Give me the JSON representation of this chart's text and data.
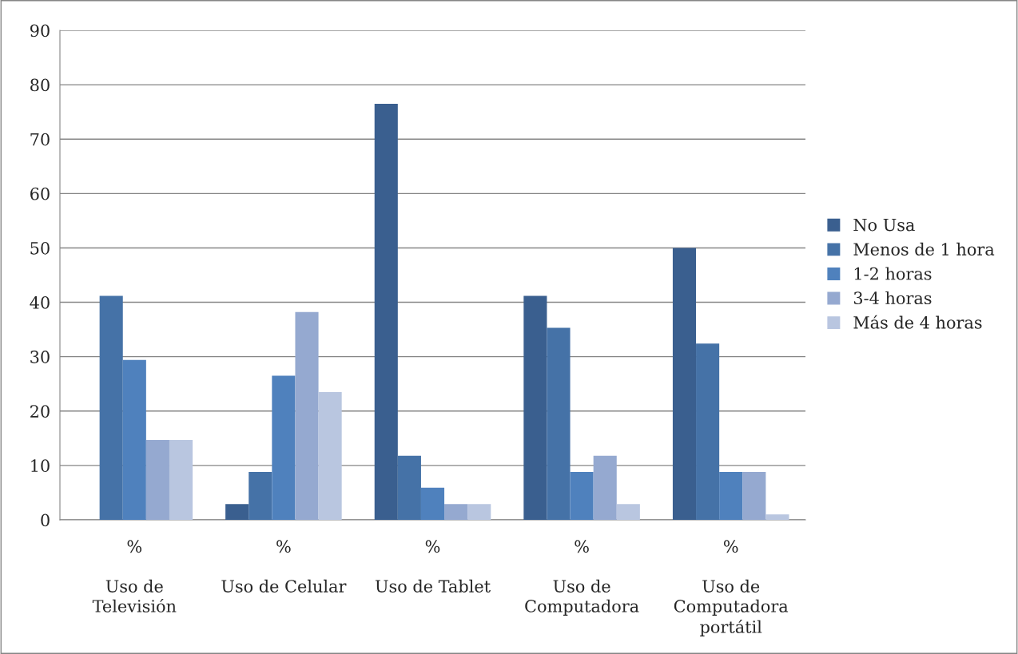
{
  "chart_data": {
    "type": "bar",
    "categories": [
      "%\n\nUso de\nTelevisión",
      "%\n\nUso de Celular",
      "%\n\nUso de Tablet",
      "%\n\nUso de\nComputadora",
      "%\n\nUso de\nComputadora\nportátil"
    ],
    "series": [
      {
        "name": "No Usa",
        "color": "#3a5f8f",
        "values": [
          0,
          2.9,
          76.5,
          41.2,
          50
        ]
      },
      {
        "name": "Menos de 1 hora",
        "color": "#4572a7",
        "values": [
          41.2,
          8.8,
          11.8,
          35.3,
          32.4
        ]
      },
      {
        "name": "1-2 horas",
        "color": "#4f81bd",
        "values": [
          29.4,
          26.5,
          5.9,
          8.8,
          8.8
        ]
      },
      {
        "name": "3-4 horas",
        "color": "#95a9d0",
        "values": [
          14.7,
          38.2,
          2.9,
          11.8,
          8.8
        ]
      },
      {
        "name": "Más de 4 horas",
        "color": "#b9c6e0",
        "values": [
          14.7,
          23.5,
          2.9,
          2.9,
          1
        ]
      }
    ],
    "ylim": [
      0,
      90
    ],
    "yticks": [
      0,
      10,
      20,
      30,
      40,
      50,
      60,
      70,
      80,
      90
    ],
    "grid": "y",
    "legend": "right"
  }
}
